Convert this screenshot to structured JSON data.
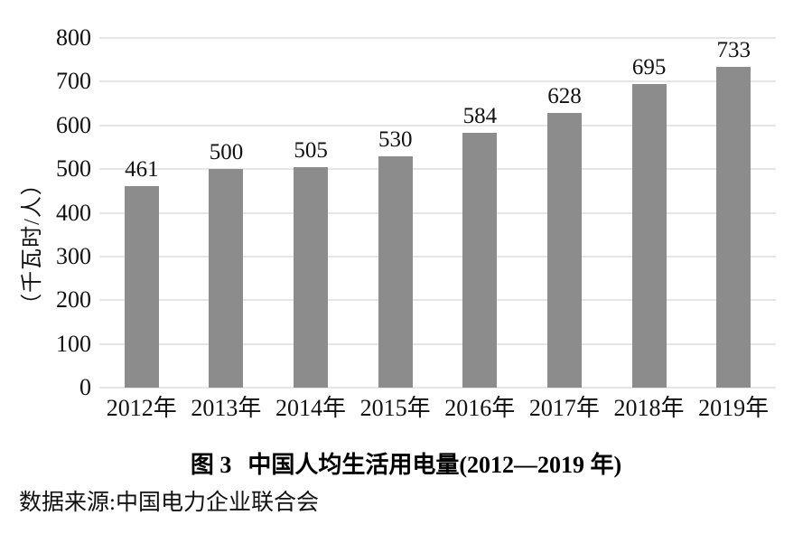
{
  "chart_data": {
    "type": "bar",
    "categories": [
      "2012年",
      "2013年",
      "2014年",
      "2015年",
      "2016年",
      "2017年",
      "2018年",
      "2019年"
    ],
    "values": [
      461,
      500,
      505,
      530,
      584,
      628,
      695,
      733
    ],
    "title": "图 3 中国人均生活用电量(2012—2019 年)",
    "xlabel": "",
    "ylabel": "（千瓦时/人）",
    "ylim": [
      0,
      800
    ],
    "y_ticks": [
      0,
      100,
      200,
      300,
      400,
      500,
      600,
      700,
      800
    ],
    "grid": true,
    "legend": "none",
    "bar_color": "#8c8c8c",
    "gridline_color": "#e6e6e6",
    "value_labels_shown": true
  },
  "caption": {
    "figure_label": "图 3",
    "title": "中国人均生活用电量(2012—2019 年)"
  },
  "source": {
    "text": "数据来源:中国电力企业联合会"
  }
}
